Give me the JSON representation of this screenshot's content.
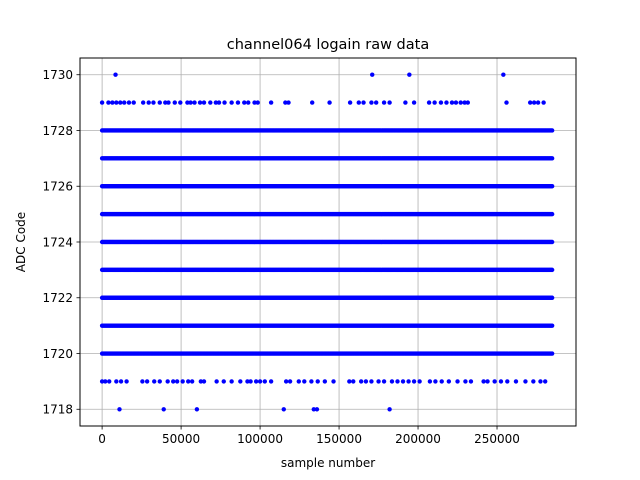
{
  "chart_data": {
    "type": "scatter",
    "title": "channel064 logain raw data",
    "xlabel": "sample number",
    "ylabel": "ADC Code",
    "xlim": [
      -14000,
      300000
    ],
    "ylim": [
      1717.4,
      1730.6
    ],
    "xticks": [
      0,
      50000,
      100000,
      150000,
      200000,
      250000
    ],
    "xtick_labels": [
      "0",
      "50000",
      "100000",
      "150000",
      "200000",
      "250000"
    ],
    "yticks": [
      1718,
      1720,
      1722,
      1724,
      1726,
      1728,
      1730
    ],
    "ytick_labels": [
      "1718",
      "1720",
      "1722",
      "1724",
      "1726",
      "1728",
      "1730"
    ],
    "grid": true,
    "marker_color": "#0000ff",
    "x_range": [
      0,
      285000
    ],
    "dense_levels": [
      1720,
      1721,
      1722,
      1723,
      1724,
      1725,
      1726,
      1727,
      1728
    ],
    "sparse_points": {
      "1730": [
        8500,
        171000,
        194500,
        254000
      ],
      "1729": [
        0,
        4000,
        6500,
        9000,
        11500,
        14000,
        17000,
        20000,
        26000,
        29500,
        32500,
        36500,
        40000,
        42000,
        46000,
        49500,
        54000,
        56000,
        58500,
        62000,
        64500,
        68500,
        72000,
        74000,
        77500,
        82000,
        86000,
        90000,
        92500,
        96500,
        98500,
        107000,
        116000,
        118000,
        133000,
        144000,
        157000,
        162500,
        165500,
        170500,
        173500,
        178500,
        182000,
        192000,
        197500,
        207000,
        210500,
        214500,
        218000,
        221500,
        224000,
        227000,
        229500,
        231500,
        256000,
        271000,
        273500,
        276000,
        279500
      ],
      "1719": [
        0,
        2000,
        4500,
        9000,
        12000,
        15500,
        25500,
        28500,
        33000,
        36500,
        41500,
        45000,
        47500,
        51000,
        54500,
        57000,
        62500,
        64500,
        72500,
        77000,
        82000,
        87500,
        92000,
        94000,
        97500,
        100000,
        103000,
        107000,
        116500,
        119000,
        124500,
        128000,
        132500,
        136500,
        141000,
        146500,
        156500,
        159000,
        164000,
        167000,
        170500,
        175000,
        178500,
        183500,
        187000,
        190500,
        194000,
        197500,
        201000,
        207500,
        211000,
        215000,
        219500,
        225000,
        230000,
        233500,
        241500,
        244000,
        248500,
        252500,
        256500,
        262000,
        268000,
        273000,
        277500,
        280500
      ],
      "1718": [
        11000,
        39000,
        60000,
        115000,
        134000,
        136000,
        182000
      ]
    }
  }
}
